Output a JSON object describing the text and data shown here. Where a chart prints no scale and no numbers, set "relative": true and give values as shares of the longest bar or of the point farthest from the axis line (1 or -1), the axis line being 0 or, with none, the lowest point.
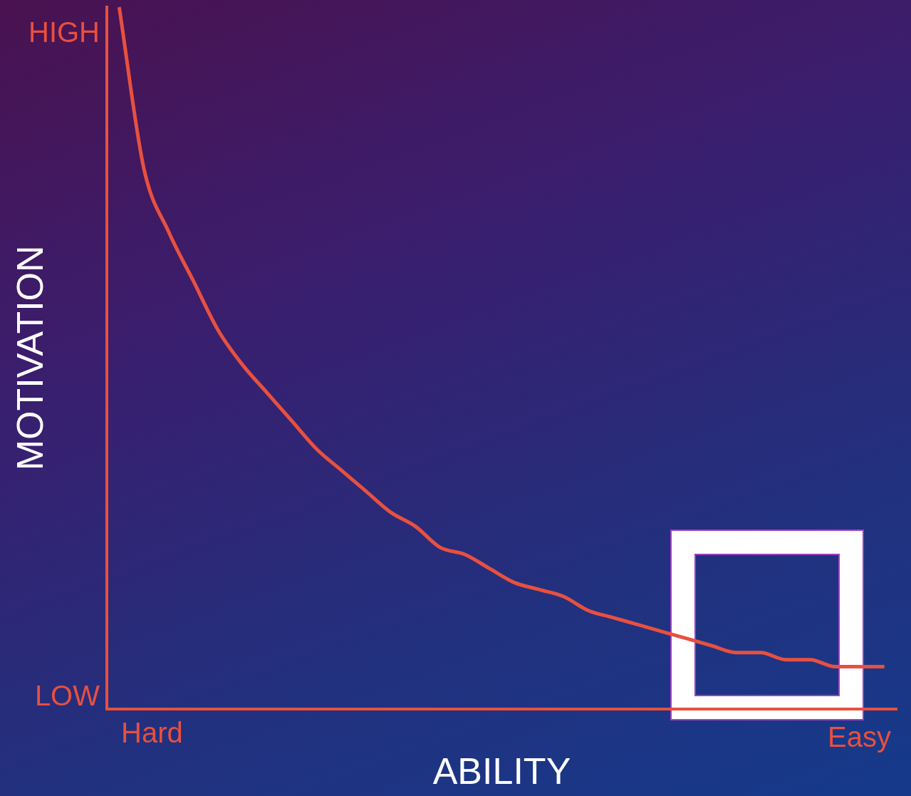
{
  "chart_data": {
    "type": "line",
    "relative": true,
    "xlabel": "ABILITY",
    "ylabel": "MOTIVATION",
    "annotations": [
      "HIGH",
      "LOW",
      "Hard",
      "Easy"
    ],
    "categories": [
      null,
      null,
      null,
      null,
      null,
      null,
      null,
      null,
      null,
      null,
      null,
      null,
      null,
      null,
      null,
      null,
      null,
      null,
      null,
      null,
      null,
      null,
      null,
      null,
      null,
      null,
      null,
      null,
      null,
      null,
      null,
      null
    ],
    "series": [
      {
        "color": "#e8503f",
        "values": [
          1,
          0.77,
          0.68,
          0.61,
          0.54,
          0.49,
          0.45,
          0.41,
          0.37,
          0.34,
          0.31,
          0.28,
          0.26,
          0.23,
          0.22,
          0.2,
          0.18,
          0.17,
          0.16,
          0.14,
          0.13,
          0.12,
          0.11,
          0.1,
          0.09,
          0.08,
          0.08,
          0.07,
          0.07,
          0.06,
          0.06,
          0.06
        ]
      }
    ],
    "grid": false,
    "legend": false,
    "marker": "none",
    "line_style": "solid"
  }
}
